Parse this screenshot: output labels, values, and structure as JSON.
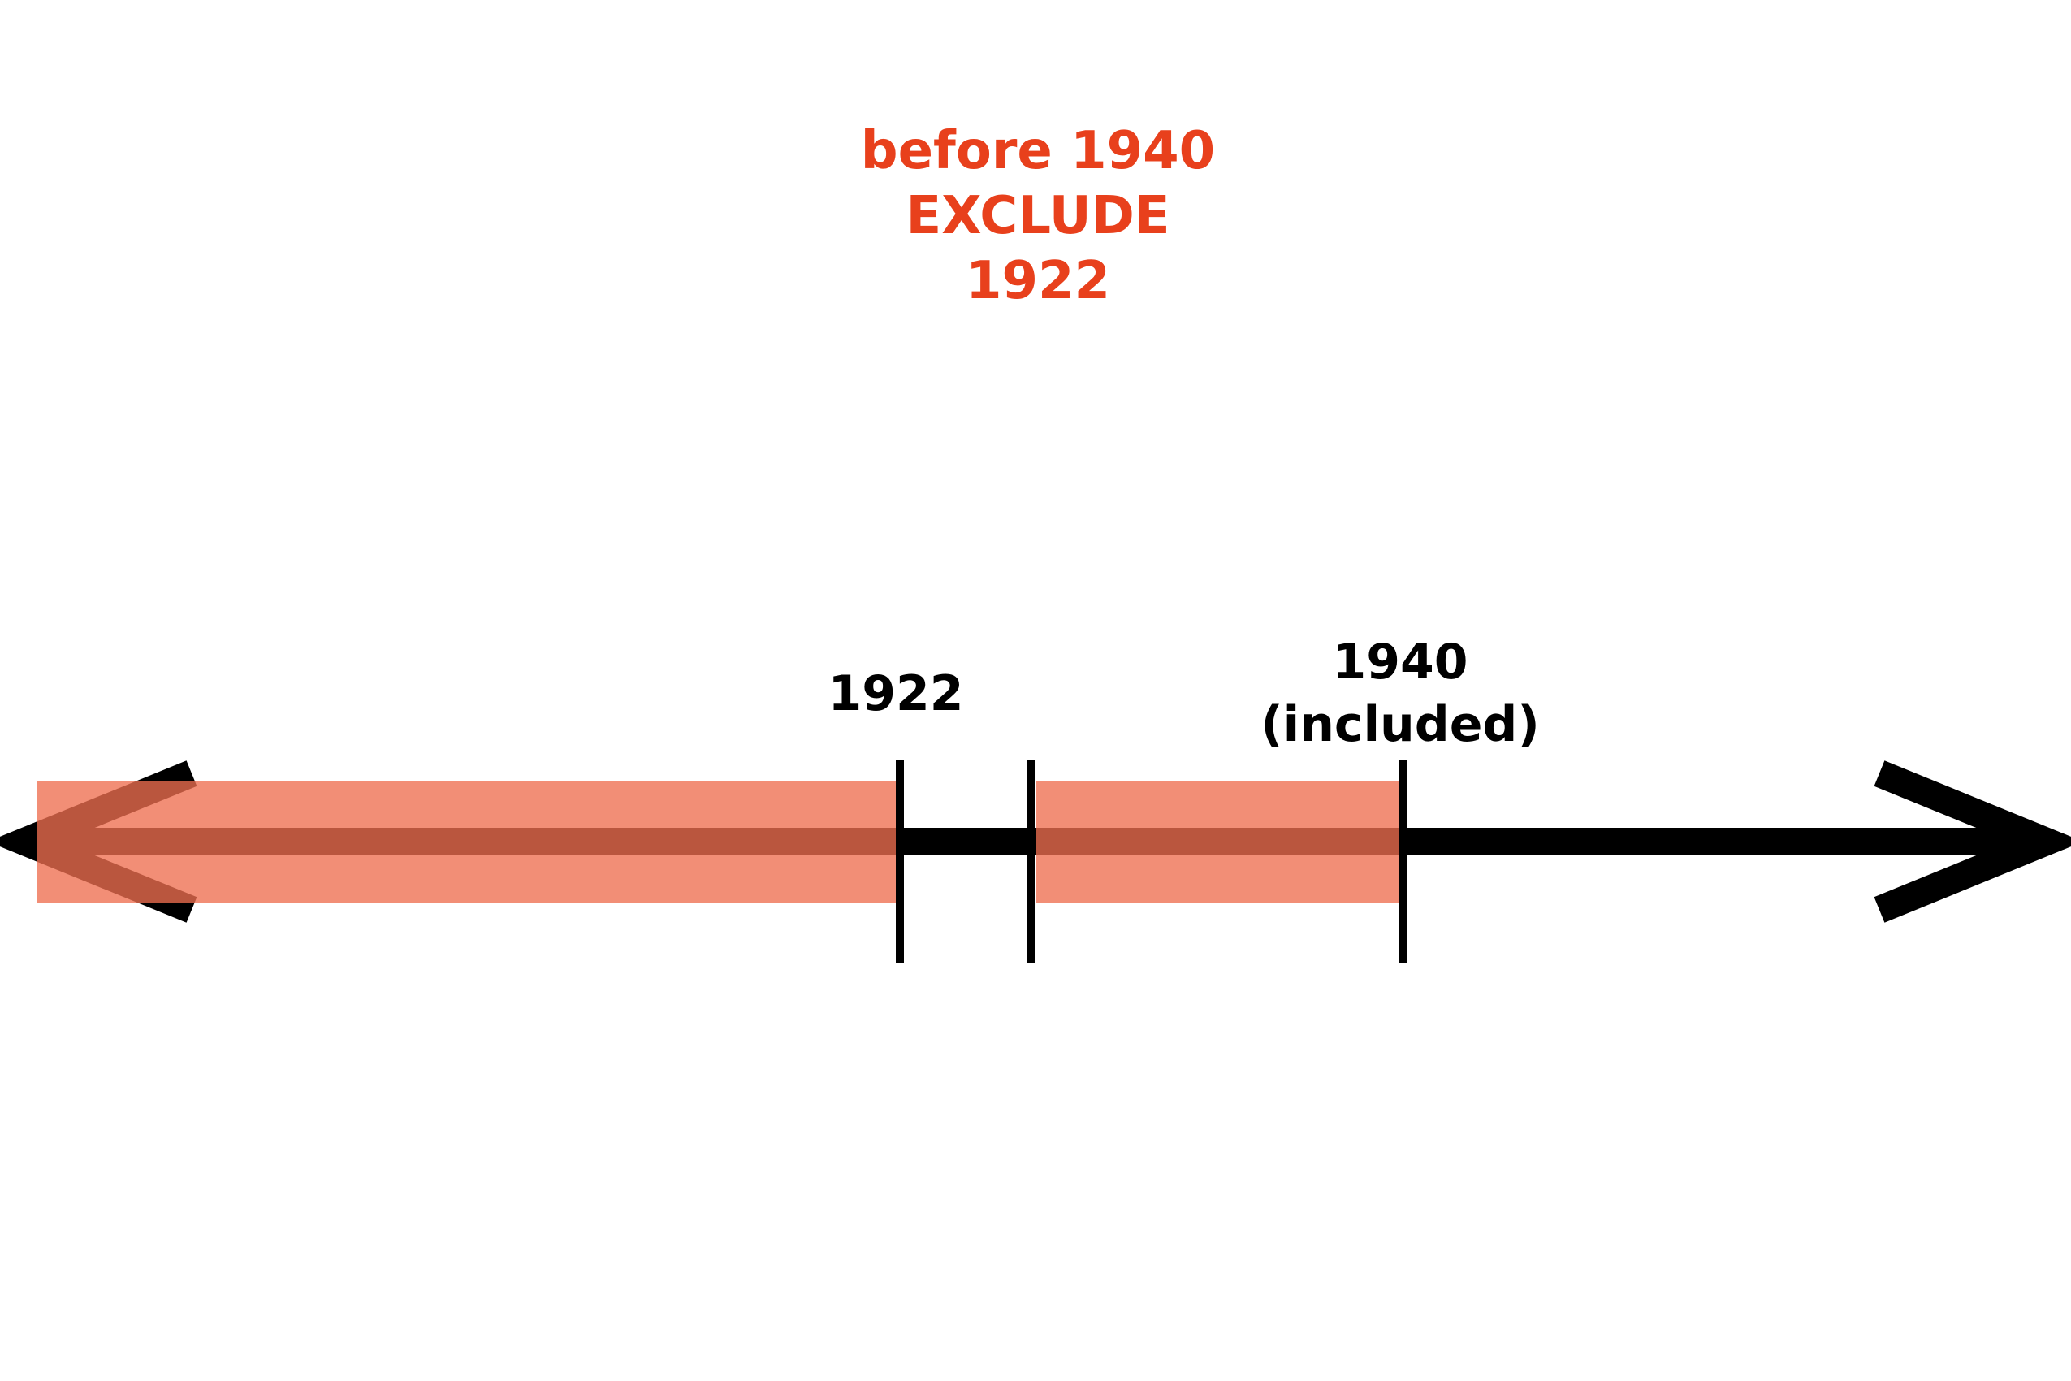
{
  "heading": {
    "lines": [
      "before 1940",
      "EXCLUDE",
      "1922"
    ],
    "color": "#e8401c"
  },
  "timeline": {
    "line_color": "#000000",
    "highlight_color": "#ee6e50",
    "ticks": [
      {
        "label_lines": [
          "1922"
        ]
      },
      {
        "label_lines": []
      },
      {
        "label_lines": [
          "1940",
          "(included)"
        ]
      }
    ],
    "highlighted_ranges": [
      {
        "from": "start",
        "to": "1922"
      },
      {
        "from": "after 1922",
        "to": "1940"
      }
    ]
  }
}
